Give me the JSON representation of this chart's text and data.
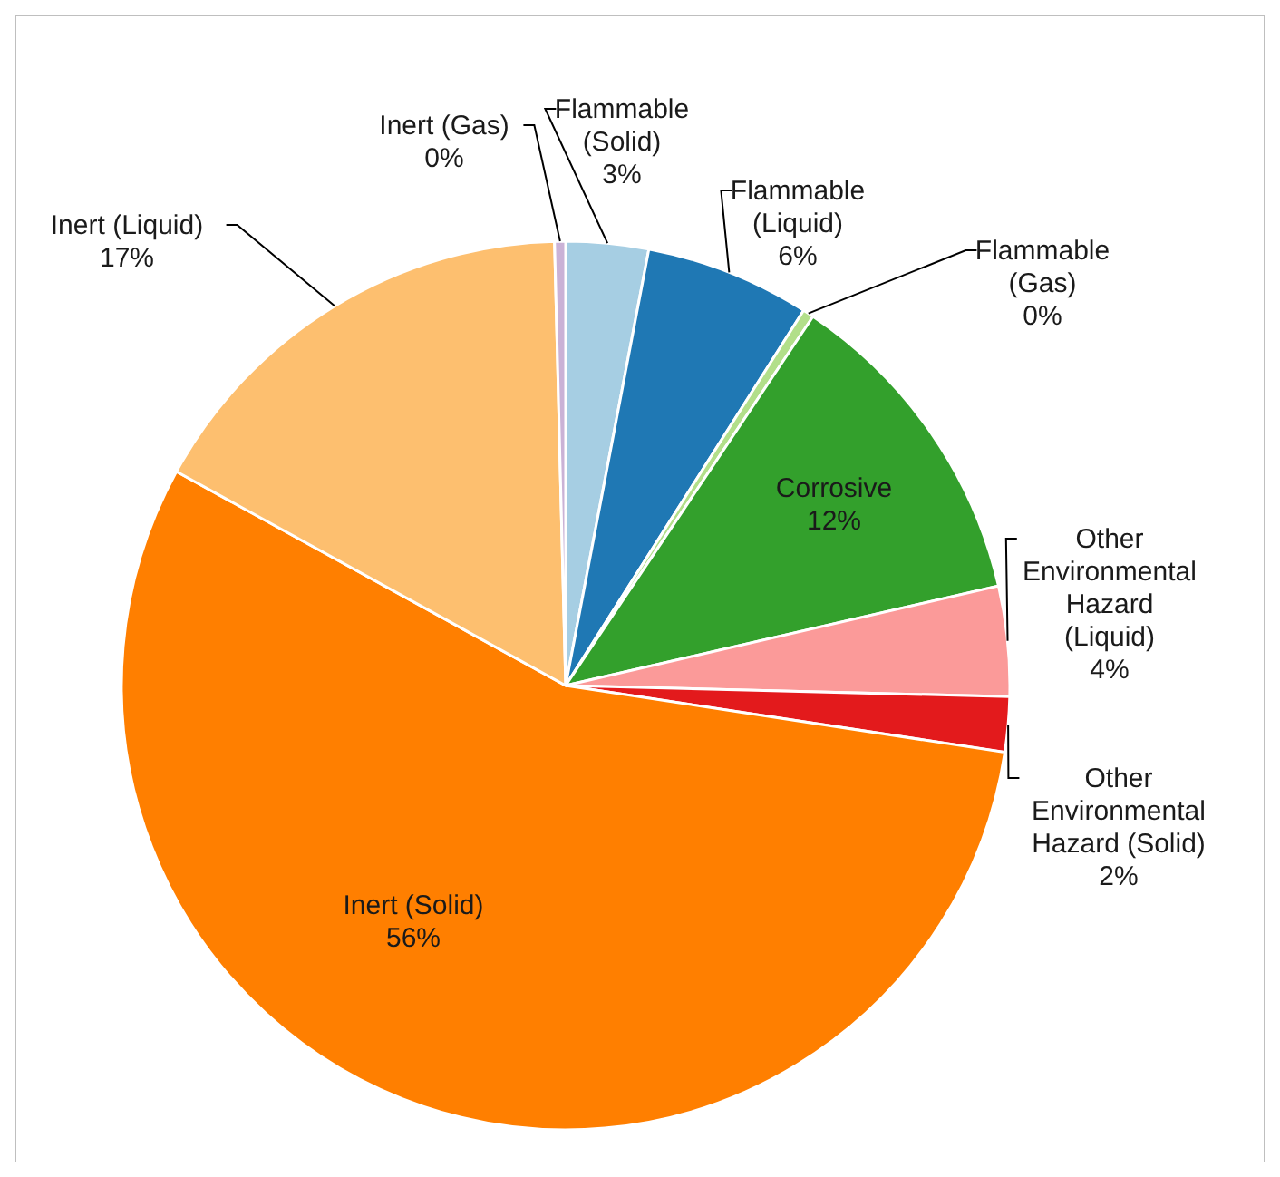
{
  "chart_data": {
    "type": "pie",
    "categories": [
      "Flammable (Solid)",
      "Flammable (Liquid)",
      "Flammable (Gas)",
      "Corrosive",
      "Other Environmental Hazard (Liquid)",
      "Other Environmental Hazard (Solid)",
      "Inert (Solid)",
      "Inert (Liquid)",
      "Inert (Gas)"
    ],
    "values": [
      3,
      6,
      0.4,
      12,
      4,
      2,
      55.6,
      16.6,
      0.4
    ],
    "value_labels": [
      "3%",
      "6%",
      "0%",
      "12%",
      "4%",
      "2%",
      "56%",
      "17%",
      "0%"
    ],
    "colors": [
      "#a6cee3",
      "#1f78b4",
      "#b2df8a",
      "#33a02c",
      "#fb9a99",
      "#e31a1c",
      "#ff7f00",
      "#fdbf6f",
      "#cab2d6"
    ]
  }
}
